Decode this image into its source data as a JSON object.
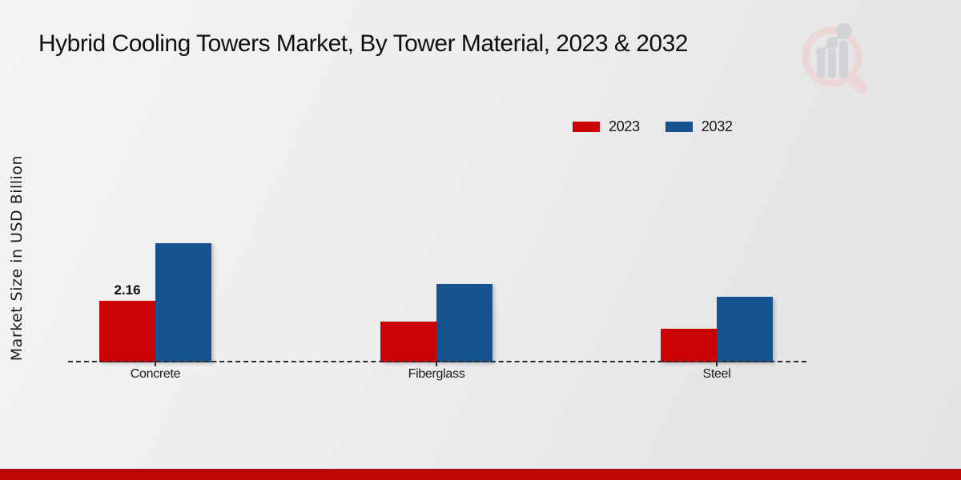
{
  "title": "Hybrid Cooling Towers Market, By Tower Material, 2023 & 2032",
  "ylabel": "Market Size in USD Billion",
  "logo": {
    "name": "market-research-future-watermark"
  },
  "colors": {
    "series_2023": "#c90303",
    "series_2032": "#15528e",
    "footer_stripe": "#c00505",
    "axis": "#2b2b2b"
  },
  "chart_data": {
    "type": "bar",
    "categories": [
      "Concrete",
      "Fiberglass",
      "Steel"
    ],
    "series": [
      {
        "name": "2023",
        "color": "#c90303",
        "values": [
          2.16,
          1.43,
          1.18
        ]
      },
      {
        "name": "2032",
        "color": "#15528e",
        "values": [
          4.18,
          2.75,
          2.3
        ]
      }
    ],
    "data_labels": [
      {
        "category_index": 0,
        "series_index": 0,
        "text": "2.16"
      }
    ],
    "title": "Hybrid Cooling Towers Market, By Tower Material, 2023 & 2032",
    "xlabel": "",
    "ylabel": "Market Size in USD Billion",
    "ylim": [
      0,
      4.6
    ],
    "grid": false,
    "legend_position": "upper-right",
    "baseline_style": "dashed"
  }
}
